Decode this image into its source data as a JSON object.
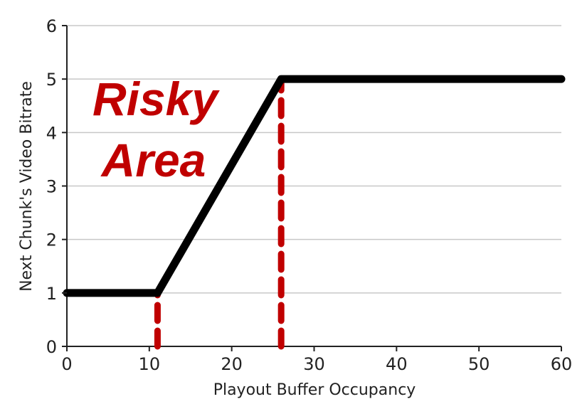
{
  "chart_data": {
    "type": "line",
    "xlabel": "Playout Buffer Occupancy",
    "ylabel": "Next Chunk's Video Bitrate",
    "xlim": [
      0,
      60
    ],
    "ylim": [
      0,
      6
    ],
    "x_ticks": [
      0,
      10,
      20,
      30,
      40,
      50,
      60
    ],
    "y_ticks": [
      0,
      1,
      2,
      3,
      4,
      5,
      6
    ],
    "grid": "horizontal",
    "series": [
      {
        "color": "#000000",
        "x": [
          0,
          11,
          26,
          60
        ],
        "y": [
          1,
          1,
          5,
          5
        ]
      }
    ],
    "reference_lines": [
      {
        "x": 11,
        "y_from": 0,
        "y_to": 1,
        "style": "dashed",
        "color": "#c00000"
      },
      {
        "x": 26,
        "y_from": 0,
        "y_to": 5,
        "style": "dashed",
        "color": "#c00000"
      }
    ],
    "annotation": {
      "lines": [
        "Risky",
        "Area"
      ],
      "color": "#c00000"
    }
  }
}
